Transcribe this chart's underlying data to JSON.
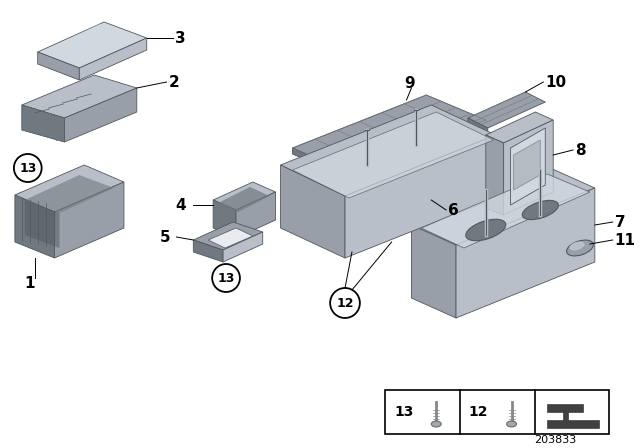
{
  "background_color": "#ffffff",
  "fig_width": 6.4,
  "fig_height": 4.48,
  "dpi": 100,
  "footer_number": "203833",
  "lc": "#b8bfc8",
  "mc": "#989fa8",
  "dc": "#707880",
  "sc": "#d0d8e0",
  "oc": "#505860",
  "lw": 0.6
}
